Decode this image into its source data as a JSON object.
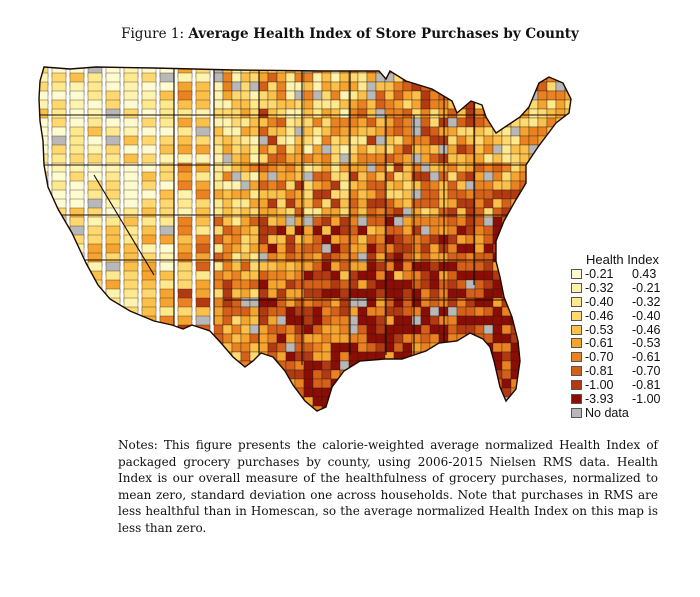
{
  "figure": {
    "label": "Figure 1:",
    "title": "Average Health Index of Store Purchases by County"
  },
  "map": {
    "region": "Contiguous United States, counties",
    "colors": [
      "#fffbd0",
      "#fff3b0",
      "#ffe98f",
      "#ffd970",
      "#fbc04a",
      "#f5a430",
      "#ea8222",
      "#d4601a",
      "#b23a12",
      "#8a0d06"
    ],
    "no_data_color": "#b8b8b8",
    "border_color": "#2a1a10"
  },
  "legend": {
    "title": "Health Index",
    "items": [
      {
        "low": "-0.21",
        "high": "0.43",
        "color": "#fffbd0"
      },
      {
        "low": "-0.32",
        "high": "-0.21",
        "color": "#fff3b0"
      },
      {
        "low": "-0.40",
        "high": "-0.32",
        "color": "#ffe98f"
      },
      {
        "low": "-0.46",
        "high": "-0.40",
        "color": "#ffd970"
      },
      {
        "low": "-0.53",
        "high": "-0.46",
        "color": "#fbc04a"
      },
      {
        "low": "-0.61",
        "high": "-0.53",
        "color": "#f5a430"
      },
      {
        "low": "-0.70",
        "high": "-0.61",
        "color": "#ea8222"
      },
      {
        "low": "-0.81",
        "high": "-0.70",
        "color": "#d4601a"
      },
      {
        "low": "-1.00",
        "high": "-0.81",
        "color": "#b23a12"
      },
      {
        "low": "-3.93",
        "high": "-1.00",
        "color": "#8a0d06"
      }
    ],
    "no_data_label": "No data",
    "no_data_color": "#b8b8b8"
  },
  "notes": "Notes: This figure presents the calorie-weighted average normalized Health Index of packaged grocery purchases by county, using 2006-2015 Nielsen RMS data. Health Index is our overall measure of the healthfulness of grocery purchases, normalized to mean zero, standard deviation one across households. Note that purchases in RMS are less healthful than in Homescan, so the average normalized Health Index on this map is less than zero."
}
